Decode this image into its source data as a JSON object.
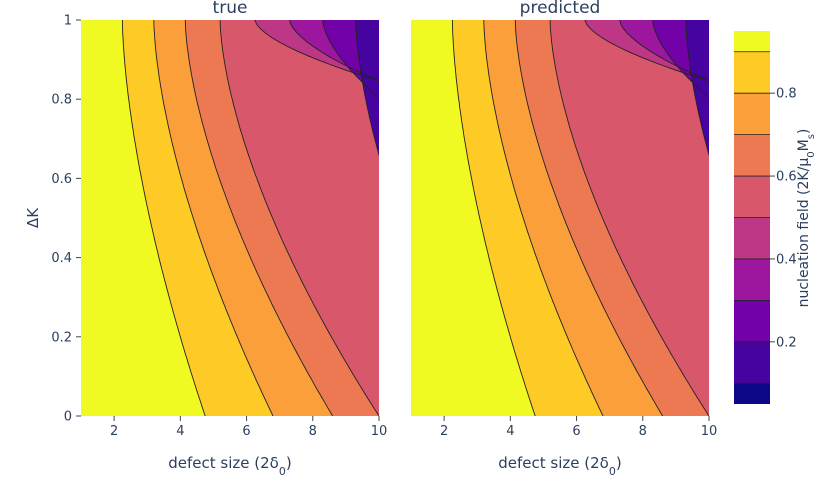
{
  "chart_data": {
    "type": "contour",
    "panels": [
      {
        "title": "true"
      },
      {
        "title": "predicted"
      }
    ],
    "xlabel": "defect size (2δ",
    "xlabel_sub": "0",
    "xlabel_close": ")",
    "ylabel": "ΔK",
    "xlim": [
      1,
      10
    ],
    "ylim": [
      0,
      1
    ],
    "x_ticks": [
      2,
      4,
      6,
      8,
      10
    ],
    "x_tick_labels": [
      "2",
      "4",
      "6",
      "8",
      "10"
    ],
    "y_ticks": [
      0,
      0.2,
      0.4,
      0.6,
      0.8,
      1
    ],
    "y_tick_labels": [
      "0",
      "0.2",
      "0.4",
      "0.6",
      "0.8",
      "1"
    ],
    "contour_x_at_dk0": [
      4.75,
      6.8,
      8.6,
      10.0
    ],
    "contour_x_at_dk1": [
      2.25,
      3.2,
      4.15,
      5.2,
      6.25,
      7.3,
      8.3,
      9.3
    ],
    "colorbar": {
      "title": "nucleation field (2K/μ",
      "title_sub_0": "0",
      "title_mid": "M",
      "title_sub_s": "s",
      "title_close": ")",
      "range": [
        0.05,
        0.95
      ],
      "levels": [
        0.05,
        0.1,
        0.2,
        0.3,
        0.4,
        0.5,
        0.6,
        0.7,
        0.8,
        0.9,
        0.95
      ],
      "ticks": [
        0.2,
        0.4,
        0.6,
        0.8
      ],
      "tick_labels": [
        "0.2",
        "0.4",
        "0.6",
        "0.8"
      ],
      "colors": [
        "#0d0887",
        "#46039f",
        "#7201a8",
        "#9c179e",
        "#bd3786",
        "#d8576b",
        "#ed7953",
        "#fb9f3a",
        "#fdca26",
        "#f0f921"
      ]
    }
  }
}
